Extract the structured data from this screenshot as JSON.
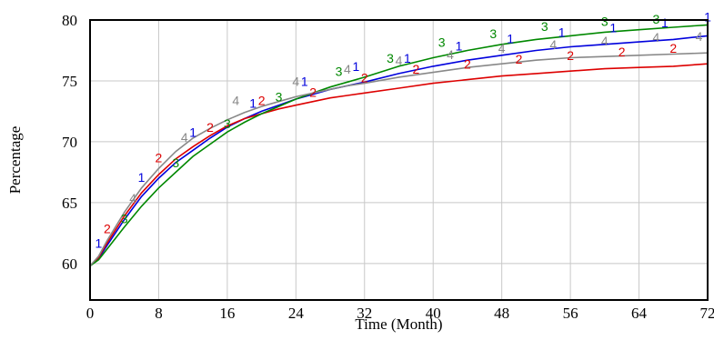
{
  "chart_data": {
    "type": "line",
    "xlabel": "Time (Month)",
    "ylabel": "Percentage",
    "xlim": [
      0,
      72
    ],
    "ylim": [
      57,
      80
    ],
    "xticks": [
      0,
      8,
      16,
      24,
      32,
      40,
      48,
      56,
      64,
      72
    ],
    "xtick_labels": [
      "0",
      "8",
      "16",
      "24",
      "32",
      "40",
      "48",
      "56",
      "64",
      "72"
    ],
    "yticks": [
      60,
      65,
      70,
      75,
      80
    ],
    "ytick_labels": [
      "60",
      "65",
      "70",
      "75",
      "80"
    ],
    "grid": true,
    "legend": "none",
    "series": [
      {
        "name": "1",
        "color": "#0000dd",
        "x": [
          0,
          1,
          2,
          4,
          6,
          8,
          10,
          12,
          14,
          16,
          18,
          20,
          22,
          24,
          26,
          28,
          30,
          32,
          36,
          40,
          44,
          48,
          52,
          56,
          60,
          64,
          68,
          72
        ],
        "values": [
          59.8,
          60.4,
          61.5,
          63.6,
          65.5,
          67.0,
          68.3,
          69.3,
          70.3,
          71.2,
          71.9,
          72.5,
          73.0,
          73.5,
          73.9,
          74.3,
          74.6,
          74.9,
          75.6,
          76.2,
          76.7,
          77.1,
          77.5,
          77.8,
          78.0,
          78.2,
          78.4,
          78.7
        ],
        "markers": [
          {
            "label": "1",
            "x": 1,
            "y": 61.3
          },
          {
            "label": "1",
            "x": 6,
            "y": 66.7
          },
          {
            "label": "1",
            "x": 12,
            "y": 70.4
          },
          {
            "label": "1",
            "x": 19,
            "y": 72.8
          },
          {
            "label": "1",
            "x": 25,
            "y": 74.6
          },
          {
            "label": "1",
            "x": 31,
            "y": 75.8
          },
          {
            "label": "1",
            "x": 37,
            "y": 76.5
          },
          {
            "label": "1",
            "x": 43,
            "y": 77.5
          },
          {
            "label": "1",
            "x": 49,
            "y": 78.1
          },
          {
            "label": "1",
            "x": 55,
            "y": 78.6
          },
          {
            "label": "1",
            "x": 61,
            "y": 79.0
          },
          {
            "label": "1",
            "x": 67,
            "y": 79.4
          },
          {
            "label": "1",
            "x": 72,
            "y": 79.9
          }
        ]
      },
      {
        "name": "2",
        "color": "#dd0000",
        "x": [
          0,
          1,
          2,
          4,
          6,
          8,
          10,
          12,
          14,
          16,
          18,
          20,
          22,
          24,
          26,
          28,
          30,
          32,
          36,
          40,
          44,
          48,
          52,
          56,
          60,
          64,
          68,
          72
        ],
        "values": [
          59.8,
          60.5,
          61.7,
          63.9,
          65.8,
          67.3,
          68.6,
          69.6,
          70.5,
          71.3,
          71.9,
          72.3,
          72.7,
          73.0,
          73.3,
          73.6,
          73.8,
          74.0,
          74.4,
          74.8,
          75.1,
          75.4,
          75.6,
          75.8,
          76.0,
          76.1,
          76.2,
          76.4
        ],
        "markers": [
          {
            "label": "2",
            "x": 2,
            "y": 62.5
          },
          {
            "label": "2",
            "x": 8,
            "y": 68.3
          },
          {
            "label": "2",
            "x": 14,
            "y": 70.8
          },
          {
            "label": "2",
            "x": 20,
            "y": 73.0
          },
          {
            "label": "2",
            "x": 26,
            "y": 73.7
          },
          {
            "label": "2",
            "x": 32,
            "y": 74.9
          },
          {
            "label": "2",
            "x": 38,
            "y": 75.6
          },
          {
            "label": "2",
            "x": 44,
            "y": 76.0
          },
          {
            "label": "2",
            "x": 50,
            "y": 76.4
          },
          {
            "label": "2",
            "x": 56,
            "y": 76.7
          },
          {
            "label": "2",
            "x": 62,
            "y": 77.0
          },
          {
            "label": "2",
            "x": 68,
            "y": 77.3
          }
        ]
      },
      {
        "name": "3",
        "color": "#008800",
        "x": [
          0,
          1,
          2,
          4,
          6,
          8,
          10,
          12,
          14,
          16,
          18,
          20,
          22,
          24,
          26,
          28,
          30,
          32,
          36,
          40,
          44,
          48,
          52,
          56,
          60,
          64,
          68,
          72
        ],
        "values": [
          59.8,
          60.3,
          61.2,
          63.0,
          64.7,
          66.2,
          67.5,
          68.8,
          69.8,
          70.8,
          71.6,
          72.3,
          72.9,
          73.5,
          74.0,
          74.5,
          74.9,
          75.3,
          76.2,
          76.9,
          77.5,
          78.0,
          78.4,
          78.7,
          79.0,
          79.2,
          79.4,
          79.6
        ],
        "markers": [
          {
            "label": "3",
            "x": 4,
            "y": 63.3
          },
          {
            "label": "3",
            "x": 10,
            "y": 67.9
          },
          {
            "label": "3",
            "x": 16,
            "y": 71.1
          },
          {
            "label": "3",
            "x": 22,
            "y": 73.3
          },
          {
            "label": "3",
            "x": 29,
            "y": 75.4
          },
          {
            "label": "3",
            "x": 35,
            "y": 76.5
          },
          {
            "label": "3",
            "x": 41,
            "y": 77.8
          },
          {
            "label": "3",
            "x": 47,
            "y": 78.5
          },
          {
            "label": "3",
            "x": 53,
            "y": 79.1
          },
          {
            "label": "3",
            "x": 60,
            "y": 79.5
          },
          {
            "label": "3",
            "x": 66,
            "y": 79.7
          }
        ]
      },
      {
        "name": "4",
        "color": "#888888",
        "x": [
          0,
          1,
          2,
          4,
          6,
          8,
          10,
          12,
          14,
          16,
          18,
          20,
          22,
          24,
          26,
          28,
          30,
          32,
          36,
          40,
          44,
          48,
          52,
          56,
          60,
          64,
          68,
          72
        ],
        "values": [
          59.8,
          60.6,
          61.9,
          64.2,
          66.2,
          67.8,
          69.2,
          70.3,
          71.1,
          71.8,
          72.4,
          72.9,
          73.3,
          73.7,
          74.0,
          74.3,
          74.6,
          74.8,
          75.3,
          75.7,
          76.1,
          76.4,
          76.7,
          76.9,
          77.0,
          77.1,
          77.2,
          77.3
        ],
        "markers": [
          {
            "label": "4",
            "x": 5,
            "y": 65.0
          },
          {
            "label": "4",
            "x": 11,
            "y": 70.0
          },
          {
            "label": "4",
            "x": 17,
            "y": 73.0
          },
          {
            "label": "4",
            "x": 24,
            "y": 74.6
          },
          {
            "label": "4",
            "x": 30,
            "y": 75.6
          },
          {
            "label": "4",
            "x": 36,
            "y": 76.3
          },
          {
            "label": "4",
            "x": 42,
            "y": 76.8
          },
          {
            "label": "4",
            "x": 48,
            "y": 77.3
          },
          {
            "label": "4",
            "x": 54,
            "y": 77.6
          },
          {
            "label": "4",
            "x": 60,
            "y": 77.9
          },
          {
            "label": "4",
            "x": 66,
            "y": 78.2
          },
          {
            "label": "4",
            "x": 71,
            "y": 78.3
          }
        ]
      }
    ]
  }
}
